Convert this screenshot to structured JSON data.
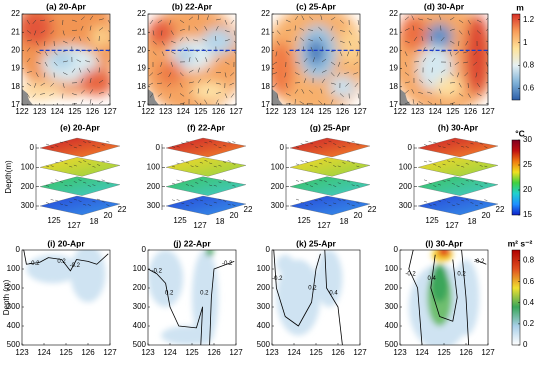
{
  "chart_data": [
    {
      "type": "map",
      "title": "(a) 20-Apr",
      "xlim": [
        122,
        127
      ],
      "xticks": [
        122,
        123,
        124,
        125,
        126,
        127
      ],
      "ylim": [
        17,
        22
      ],
      "yticks": [
        17,
        18,
        19,
        20,
        21,
        22
      ]
    },
    {
      "type": "map",
      "title": "(b) 22-Apr",
      "xlim": [
        122,
        127
      ],
      "xticks": [
        122,
        123,
        124,
        125,
        126,
        127
      ],
      "ylim": [
        17,
        22
      ],
      "yticks": [
        17,
        18,
        19,
        20,
        21,
        22
      ]
    },
    {
      "type": "map",
      "title": "(c) 25-Apr",
      "xlim": [
        122,
        127
      ],
      "xticks": [
        122,
        123,
        124,
        125,
        126,
        127
      ],
      "ylim": [
        17,
        22
      ],
      "yticks": [
        17,
        18,
        19,
        20,
        21,
        22
      ]
    },
    {
      "type": "map",
      "title": "(d) 30-Apr",
      "xlim": [
        122,
        127
      ],
      "xticks": [
        122,
        123,
        124,
        125,
        126,
        127
      ],
      "ylim": [
        17,
        22
      ],
      "yticks": [
        17,
        18,
        19,
        20,
        21,
        22
      ]
    },
    {
      "type": "colorbar",
      "label": "m",
      "lim": [
        0.5,
        1.25
      ],
      "ticks": [
        0.6,
        0.8,
        1,
        1.2
      ],
      "colors": [
        "#2c5ea8",
        "#7fb2d8",
        "#e6f1f3",
        "#fee39a",
        "#f89c59",
        "#d73027"
      ]
    },
    {
      "type": "slices",
      "title": "(e) 20-Apr",
      "zlabel": "Depth(m)",
      "zlim": [
        0,
        300
      ],
      "zticks": [
        0,
        100,
        200,
        300
      ],
      "xticks": [
        125,
        127
      ],
      "yticks": [
        18,
        20,
        22
      ]
    },
    {
      "type": "slices",
      "title": "(f) 22-Apr",
      "zlim": [
        0,
        300
      ],
      "zticks": [
        0,
        100,
        200,
        300
      ],
      "xticks": [
        125,
        127
      ],
      "yticks": [
        18,
        20,
        22
      ]
    },
    {
      "type": "slices",
      "title": "(g) 25-Apr",
      "zlim": [
        0,
        300
      ],
      "zticks": [
        0,
        100,
        200,
        300
      ],
      "xticks": [
        125,
        127
      ],
      "yticks": [
        18,
        20,
        22
      ]
    },
    {
      "type": "slices",
      "title": "(h) 30-Apr",
      "zlim": [
        0,
        300
      ],
      "zticks": [
        0,
        100,
        200,
        300
      ],
      "xticks": [
        125,
        127
      ],
      "yticks": [
        18,
        20,
        22
      ]
    },
    {
      "type": "colorbar",
      "label": "°C",
      "lim": [
        15,
        30
      ],
      "ticks": [
        15,
        20,
        25,
        30
      ],
      "colors": [
        "#1020c8",
        "#1e90ff",
        "#20d0d0",
        "#40d040",
        "#f0e020",
        "#f07a10",
        "#c01010",
        "#800020"
      ]
    },
    {
      "type": "section",
      "title": "(i) 20-Apr",
      "ylabel": "Depth (m)",
      "xlim": [
        123,
        127
      ],
      "xticks": [
        123,
        124,
        125,
        126,
        127
      ],
      "ylim": [
        500,
        0
      ],
      "yticks": [
        0,
        100,
        200,
        300,
        400,
        500
      ],
      "contour_labels": [
        -0.2,
        0.2,
        -0.2
      ]
    },
    {
      "type": "section",
      "title": "(j) 22-Apr",
      "xlim": [
        123,
        127
      ],
      "xticks": [
        123,
        124,
        125,
        126,
        127
      ],
      "ylim": [
        500,
        0
      ],
      "yticks": [
        0,
        100,
        200,
        300,
        400,
        500
      ],
      "contour_labels": [
        -0.2,
        0.2,
        0.2,
        -0.2
      ]
    },
    {
      "type": "section",
      "title": "(k) 25-Apr",
      "xlim": [
        123,
        127
      ],
      "xticks": [
        123,
        124,
        125,
        126,
        127
      ],
      "ylim": [
        500,
        0
      ],
      "yticks": [
        0,
        100,
        200,
        300,
        400,
        500
      ],
      "contour_labels": [
        -0.2,
        0.2,
        0.4
      ]
    },
    {
      "type": "section",
      "title": "(l) 30-Apr",
      "xlim": [
        123,
        127
      ],
      "xticks": [
        123,
        124,
        125,
        126,
        127
      ],
      "ylim": [
        500,
        0
      ],
      "yticks": [
        0,
        100,
        200,
        300,
        400,
        500
      ],
      "contour_labels": [
        -0.2,
        0.4,
        0.2,
        -0.2
      ]
    },
    {
      "type": "colorbar",
      "label": "m² s⁻²",
      "lim": [
        0,
        0.9
      ],
      "ticks": [
        0,
        0.2,
        0.4,
        0.6,
        0.8
      ],
      "colors": [
        "#ffffff",
        "#a8cfe8",
        "#3aa65a",
        "#f0e030",
        "#e05020",
        "#b00000"
      ]
    }
  ]
}
